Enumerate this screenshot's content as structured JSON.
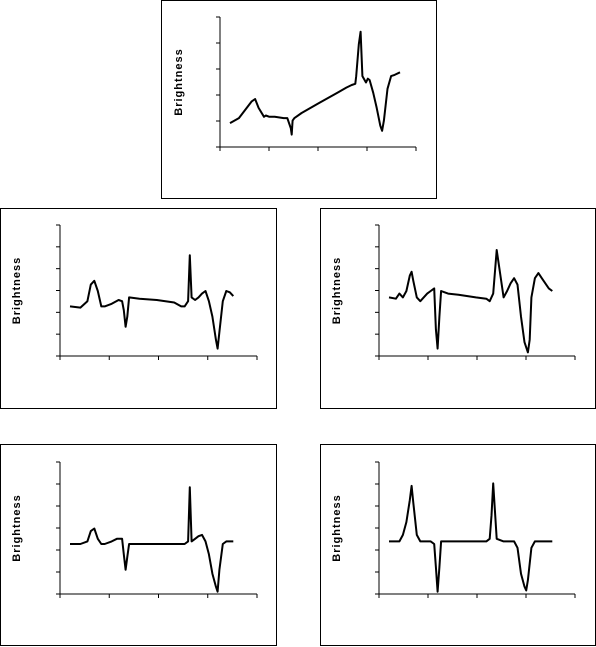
{
  "chart_data": [
    {
      "type": "line",
      "ylabel": "Brightness",
      "y_ticks": 6,
      "x_ticks": 5,
      "series": [
        {
          "x": [
            0,
            0.05,
            0.12,
            0.14,
            0.16,
            0.19,
            0.2,
            0.22,
            0.25,
            0.3,
            0.32,
            0.34,
            0.345,
            0.35,
            0.36,
            0.37,
            0.4,
            0.5,
            0.6,
            0.65,
            0.68,
            0.7,
            0.705,
            0.72,
            0.73,
            0.74,
            0.76,
            0.77,
            0.78,
            0.8,
            0.82,
            0.84,
            0.85,
            0.86,
            0.88,
            0.9,
            0.92,
            0.95
          ],
          "y": [
            0.18,
            0.22,
            0.35,
            0.37,
            0.3,
            0.23,
            0.24,
            0.23,
            0.23,
            0.22,
            0.22,
            0.14,
            0.09,
            0.2,
            0.22,
            0.23,
            0.26,
            0.34,
            0.42,
            0.46,
            0.48,
            0.49,
            0.55,
            0.8,
            0.9,
            0.55,
            0.5,
            0.53,
            0.52,
            0.42,
            0.3,
            0.16,
            0.12,
            0.2,
            0.45,
            0.55,
            0.56,
            0.58
          ]
        }
      ]
    },
    {
      "type": "line",
      "ylabel": "Brightness",
      "y_ticks": 7,
      "x_ticks": 5,
      "series": [
        {
          "x": [
            0,
            0.06,
            0.1,
            0.12,
            0.14,
            0.16,
            0.18,
            0.2,
            0.24,
            0.28,
            0.3,
            0.31,
            0.32,
            0.33,
            0.34,
            0.4,
            0.5,
            0.6,
            0.64,
            0.66,
            0.68,
            0.69,
            0.7,
            0.72,
            0.74,
            0.76,
            0.78,
            0.8,
            0.82,
            0.84,
            0.85,
            0.86,
            0.88,
            0.9,
            0.92,
            0.94
          ],
          "y": [
            0.38,
            0.37,
            0.42,
            0.55,
            0.58,
            0.5,
            0.38,
            0.38,
            0.4,
            0.43,
            0.42,
            0.35,
            0.22,
            0.3,
            0.45,
            0.44,
            0.43,
            0.41,
            0.38,
            0.38,
            0.42,
            0.78,
            0.45,
            0.43,
            0.45,
            0.48,
            0.5,
            0.42,
            0.3,
            0.12,
            0.05,
            0.18,
            0.42,
            0.5,
            0.49,
            0.46
          ]
        }
      ]
    },
    {
      "type": "line",
      "ylabel": "Brightness",
      "y_ticks": 7,
      "x_ticks": 5,
      "series": [
        {
          "x": [
            0,
            0.04,
            0.06,
            0.08,
            0.1,
            0.12,
            0.13,
            0.14,
            0.16,
            0.18,
            0.2,
            0.22,
            0.24,
            0.26,
            0.27,
            0.28,
            0.29,
            0.3,
            0.32,
            0.34,
            0.4,
            0.5,
            0.56,
            0.58,
            0.6,
            0.62,
            0.66,
            0.68,
            0.7,
            0.72,
            0.74,
            0.76,
            0.78,
            0.8,
            0.81,
            0.82,
            0.84,
            0.86,
            0.88,
            0.9,
            0.92,
            0.94
          ],
          "y": [
            0.45,
            0.44,
            0.48,
            0.45,
            0.5,
            0.62,
            0.65,
            0.58,
            0.45,
            0.42,
            0.45,
            0.48,
            0.5,
            0.52,
            0.2,
            0.05,
            0.3,
            0.5,
            0.49,
            0.48,
            0.47,
            0.45,
            0.44,
            0.42,
            0.48,
            0.82,
            0.45,
            0.5,
            0.56,
            0.6,
            0.55,
            0.3,
            0.1,
            0.02,
            0.12,
            0.45,
            0.6,
            0.64,
            0.6,
            0.56,
            0.52,
            0.5
          ]
        }
      ]
    },
    {
      "type": "line",
      "ylabel": "Brightness",
      "y_ticks": 7,
      "x_ticks": 5,
      "series": [
        {
          "x": [
            0,
            0.06,
            0.1,
            0.12,
            0.14,
            0.16,
            0.18,
            0.2,
            0.24,
            0.27,
            0.3,
            0.31,
            0.32,
            0.33,
            0.34,
            0.5,
            0.6,
            0.64,
            0.66,
            0.68,
            0.69,
            0.7,
            0.72,
            0.74,
            0.76,
            0.78,
            0.8,
            0.82,
            0.84,
            0.85,
            0.86,
            0.88,
            0.9,
            0.94
          ],
          "y": [
            0.38,
            0.38,
            0.4,
            0.48,
            0.5,
            0.42,
            0.38,
            0.38,
            0.4,
            0.42,
            0.42,
            0.3,
            0.18,
            0.28,
            0.38,
            0.38,
            0.38,
            0.38,
            0.38,
            0.4,
            0.82,
            0.4,
            0.42,
            0.44,
            0.45,
            0.4,
            0.3,
            0.15,
            0.05,
            0.01,
            0.18,
            0.38,
            0.4,
            0.4
          ]
        }
      ]
    },
    {
      "type": "line",
      "ylabel": "Brightness",
      "y_ticks": 7,
      "x_ticks": 5,
      "series": [
        {
          "x": [
            0,
            0.06,
            0.08,
            0.1,
            0.12,
            0.13,
            0.14,
            0.16,
            0.18,
            0.2,
            0.24,
            0.26,
            0.27,
            0.28,
            0.29,
            0.3,
            0.32,
            0.5,
            0.56,
            0.58,
            0.59,
            0.6,
            0.62,
            0.66,
            0.7,
            0.72,
            0.74,
            0.76,
            0.78,
            0.79,
            0.8,
            0.82,
            0.84,
            0.86,
            0.9,
            0.94
          ],
          "y": [
            0.4,
            0.4,
            0.45,
            0.55,
            0.72,
            0.83,
            0.7,
            0.45,
            0.4,
            0.4,
            0.4,
            0.38,
            0.2,
            0.01,
            0.2,
            0.4,
            0.4,
            0.4,
            0.4,
            0.42,
            0.6,
            0.85,
            0.42,
            0.4,
            0.4,
            0.4,
            0.35,
            0.15,
            0.05,
            0.02,
            0.1,
            0.35,
            0.4,
            0.4,
            0.4,
            0.4
          ]
        }
      ]
    }
  ]
}
